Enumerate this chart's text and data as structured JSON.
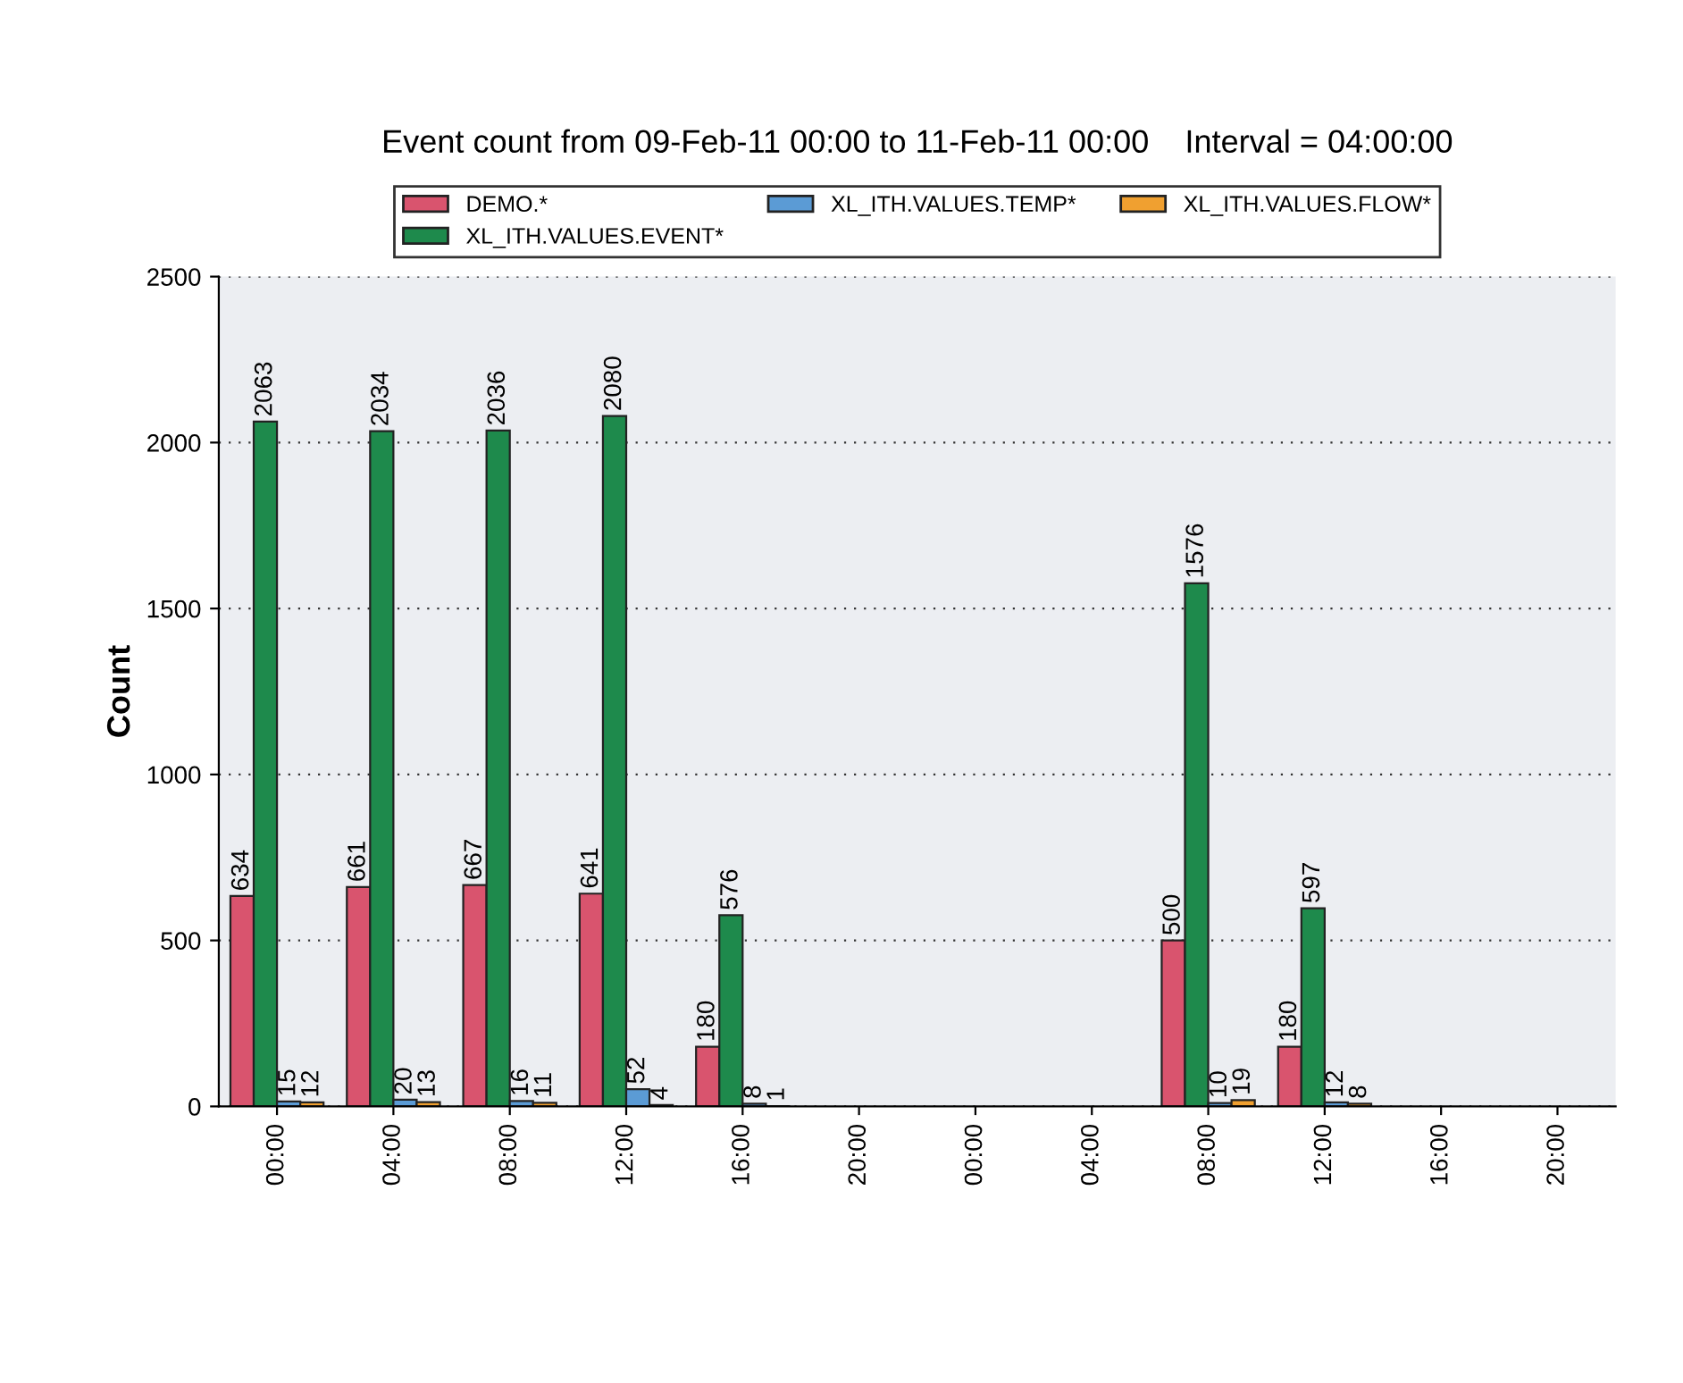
{
  "chart_data": {
    "type": "bar",
    "title": "Event count from 09-Feb-11 00:00 to 11-Feb-11 00:00    Interval = 04:00:00",
    "ylabel": "Count",
    "categories": [
      "00:00",
      "04:00",
      "08:00",
      "12:00",
      "16:00",
      "20:00",
      "00:00",
      "04:00",
      "08:00",
      "12:00",
      "16:00",
      "20:00"
    ],
    "series": [
      {
        "name": "DEMO.*",
        "color": "#d9546e",
        "values": [
          634,
          661,
          667,
          641,
          180,
          null,
          null,
          null,
          500,
          180,
          null,
          null
        ]
      },
      {
        "name": "XL_ITH.VALUES.EVENT*",
        "color": "#1e8a4c",
        "values": [
          2063,
          2034,
          2036,
          2080,
          576,
          null,
          null,
          null,
          1576,
          597,
          null,
          null
        ]
      },
      {
        "name": "XL_ITH.VALUES.TEMP*",
        "color": "#5b9bd5",
        "values": [
          15,
          20,
          16,
          52,
          8,
          null,
          null,
          null,
          10,
          12,
          null,
          null
        ]
      },
      {
        "name": "XL_ITH.VALUES.FLOW*",
        "color": "#f0a030",
        "values": [
          12,
          13,
          11,
          4,
          1,
          null,
          null,
          null,
          19,
          8,
          null,
          null
        ]
      }
    ],
    "ylim": [
      0,
      2500
    ],
    "yticks": [
      0,
      500,
      1000,
      1500,
      2000,
      2500
    ],
    "grid": "y",
    "legend": "top",
    "data_labels": true
  }
}
